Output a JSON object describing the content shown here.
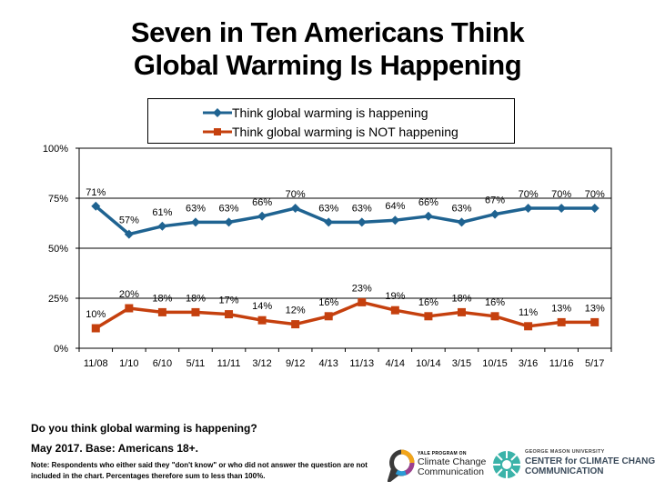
{
  "title": {
    "line1": "Seven in Ten Americans Think",
    "line2": "Global Warming Is Happening"
  },
  "chart_data": {
    "type": "line",
    "categories": [
      "11/08",
      "1/10",
      "6/10",
      "5/11",
      "11/11",
      "3/12",
      "9/12",
      "4/13",
      "11/13",
      "4/14",
      "10/14",
      "3/15",
      "10/15",
      "3/16",
      "11/16",
      "5/17"
    ],
    "series": [
      {
        "name": "Think global warming is happening",
        "color": "#1f6391",
        "marker": "diamond",
        "values": [
          71,
          57,
          61,
          63,
          63,
          66,
          70,
          63,
          63,
          64,
          66,
          63,
          67,
          70,
          70,
          70
        ],
        "labels": [
          "71%",
          "57%",
          "61%",
          "63%",
          "63%",
          "66%",
          "70%",
          "63%",
          "63%",
          "64%",
          "66%",
          "63%",
          "67%",
          "70%",
          "70%",
          "70%"
        ]
      },
      {
        "name": "Think global warming is NOT happening",
        "color": "#c5400e",
        "marker": "square",
        "values": [
          10,
          20,
          18,
          18,
          17,
          14,
          12,
          16,
          23,
          19,
          16,
          18,
          16,
          11,
          13,
          13
        ],
        "labels": [
          "10%",
          "20%",
          "18%",
          "18%",
          "17%",
          "14%",
          "12%",
          "16%",
          "23%",
          "19%",
          "16%",
          "18%",
          "16%",
          "11%",
          "13%",
          "13%"
        ]
      }
    ],
    "yticks": [
      0,
      25,
      50,
      75,
      100
    ],
    "ytick_labels": [
      "0%",
      "25%",
      "50%",
      "75%",
      "100%"
    ],
    "ylim": [
      0,
      100
    ],
    "grid": "horizontal",
    "legend": "top-center",
    "title": "Seven in Ten Americans Think Global Warming Is Happening"
  },
  "footer": {
    "question": "Do you think global warming is happening?",
    "date": "May 2017. Base: Americans 18+.",
    "note": "Note: Respondents who either said they \"don't know\" or who did not answer the question are not included in the chart. Percentages therefore sum to less than 100%."
  },
  "logos": {
    "yale_small": "YALE PROGRAM ON",
    "yale_line1": "Climate Change",
    "yale_line2": "Communication",
    "gmu_small": "GEORGE MASON UNIVERSITY",
    "gmu_line1": "CENTER for CLIMATE CHANGE",
    "gmu_line2": "COMMUNICATION"
  }
}
